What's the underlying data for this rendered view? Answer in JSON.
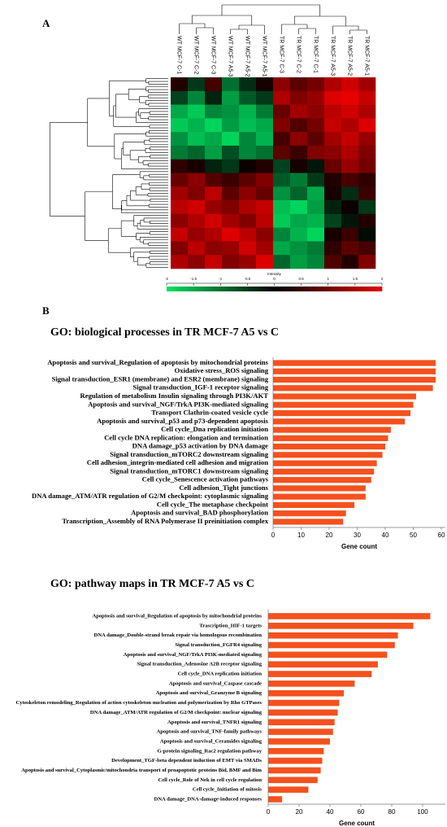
{
  "chart_data": [
    {
      "type": "heatmap",
      "panel": "A",
      "x": [
        "WT MCF-7 C-1",
        "WT MCF-7 C-2",
        "WT MCF-7 C-3",
        "WT MCF-7 A5-3",
        "WT MCF-7 A5-2",
        "WT MCF-7 A5-1",
        "TR MCF-7 C-3",
        "TR MCF-7 C-2",
        "TR MCF-7 C-1",
        "TR MCF-7 A5-3",
        "TR MCF-7 A5-2",
        "TR MCF-7 A5-1"
      ],
      "z": [
        [
          0.3,
          -0.5,
          0.6,
          -1,
          -0.4,
          0.2,
          1.2,
          0.8,
          1,
          1.5,
          1.8,
          1.4
        ],
        [
          -0.6,
          -1.2,
          -0.3,
          -1.4,
          -0.8,
          -0.5,
          1.5,
          1.1,
          1.3,
          1.9,
          2,
          1.7
        ],
        [
          -1.5,
          -1.8,
          -1.2,
          -1.3,
          -1.6,
          -1.1,
          0.9,
          1.4,
          1.2,
          1.6,
          1.8,
          1.5
        ],
        [
          -1.8,
          -1.6,
          -1.9,
          -1.4,
          -1.7,
          -1.5,
          1.1,
          0.7,
          1,
          1.7,
          1.5,
          1.9
        ],
        [
          -1.3,
          -1.7,
          -1.5,
          -1.9,
          -1.2,
          -1.6,
          0.6,
          1.2,
          0.8,
          1.4,
          1.7,
          1.3
        ],
        [
          -1.1,
          -0.9,
          -1.4,
          -0.7,
          -1.2,
          -1,
          0.8,
          0.5,
          1.1,
          1.2,
          1.5,
          1.1
        ],
        [
          0.4,
          0.2,
          -0.3,
          -0.5,
          0.1,
          0.3,
          -0.6,
          0.2,
          -0.2,
          0.9,
          1.3,
          1
        ],
        [
          0.9,
          1.2,
          0.7,
          0.5,
          0.8,
          1.1,
          -0.8,
          -1.1,
          -0.5,
          0.3,
          0.6,
          0.4
        ],
        [
          1.4,
          1.1,
          1.6,
          0.8,
          1.2,
          0.9,
          -1.3,
          -0.9,
          -1.5,
          0.2,
          -0.4,
          0.5
        ],
        [
          1.6,
          1.8,
          1.3,
          1.1,
          1.5,
          1.7,
          -1.7,
          -1.9,
          -1.4,
          -0.3,
          0.1,
          -0.5
        ],
        [
          1.2,
          1.5,
          1.8,
          1.4,
          1.1,
          1.6,
          -1.8,
          -1.5,
          -1.6,
          -0.6,
          -0.2,
          0.3
        ],
        [
          1.7,
          1.3,
          1.5,
          1.9,
          1.6,
          1.2,
          -1.2,
          -1.6,
          -1.9,
          0.2,
          0.5,
          -0.1
        ],
        [
          1.1,
          1.6,
          1.2,
          1.3,
          1.8,
          1.4,
          -1.5,
          -1.3,
          -1.1,
          0.4,
          0.8,
          0.6
        ],
        [
          1.5,
          1.2,
          1.7,
          1.1,
          1.3,
          1.9,
          -0.9,
          -1.4,
          -1.2,
          0.7,
          0.3,
          1.1
        ]
      ],
      "zlim": [
        -2,
        2
      ],
      "zticks": [
        -2,
        -1.5,
        -1,
        -0.5,
        0,
        0.5,
        1,
        1.5,
        2
      ],
      "colorbar_label": "Intensity",
      "colors": [
        "#00e060",
        "#000000",
        "#e80000"
      ]
    },
    {
      "type": "barh",
      "panel": "B",
      "title": "GO: biological processes in TR MCF-7 A5 vs C",
      "x_label": "Gene count",
      "color": "#f4511e",
      "categories": [
        "Apoptosis and survival_Regulation of apoptosis by mitochondrial proteins",
        "Oxidative stress_ROS signaling",
        "Signal transduction_ESR1 (membrane) and ESR2 (membrane) signaling",
        "Signal transduction_IGF-1 receptor signaling",
        "Regulation of metabolism Insulin signaling through PI3K/AKT",
        "Apoptosis and survival_NGF/TrkA PI3K-mediated signaling",
        "Transport Clathrin-coated vesicle cycle",
        "Apoptosis and survival_p53 and p73-dependent apoptosis",
        "Cell cycle_Dna replication initiation",
        "Cell cycle DNA replication: elongation and termination",
        "DNA damage_p53 activation by DNA damage",
        "Signal transduction_mTORC2 downstream signaling",
        "Cell adhesion_integrin-mediated cell adhesion and migration",
        "Signal transduction_mTORC1 downstream signaling",
        "Cell cycle_Senescence activation pathways",
        "Cell adhesion_Tight junctions",
        "DNA damage_ATM/ATR regulation of G2/M checkpoint: cytoplasmic signaling",
        "Cell cycle_The metaphase checkpoint",
        "Apoptosis and survival_BAD phosphorylation",
        "Transcription_Assembly of RNA Polymerase II preinitiation complex"
      ],
      "values": [
        58,
        58,
        58,
        57,
        51,
        50,
        49,
        47,
        42,
        41,
        40,
        39,
        37,
        36,
        35,
        33,
        33,
        29,
        26,
        25
      ],
      "xlim": [
        0,
        60
      ],
      "xticks": [
        0,
        10,
        20,
        30,
        40,
        50,
        60
      ]
    },
    {
      "type": "barh",
      "title": "GO: pathway maps in TR MCF-7 A5 vs C",
      "x_label": "Gene count",
      "color": "#f4511e",
      "categories": [
        "Apoptosis and survival_Regulation of apoptosis by mitochondrial proteins",
        "Trascription_HIF-1 targets",
        "DNA damage_Double-strand break repair via homologous recombination",
        "Signal transduction_FGFR4 signaling",
        "Apoptosis and survival_NGF/TrkA PI3K-mediated signaling",
        "Signal transduction_Adenosine A2B receptor signaling",
        "Cell cycle_DNA replication initiation",
        "Apoptosis and survival_Caspase cascade",
        "Apoptosis and survival_Granzyme B signaling",
        "Cytoskeleton remodeling_Regulation of action cytoskeleton nucleation and polymerization by Rho GTPases",
        "DNA damage_ATM/ATR regulation of G2/M checkpoint: nuclear signaling",
        "Apoptosis and survival_TNFR1 signaling",
        "Apoptosis and survival_TNF-family pathways",
        "Apoptosis and survival_Ceramides signaling",
        "G-protein signaling_Rac2 regulation pathway",
        "Development_TGF-beta dependent induction of EMT via SMADs",
        "Apoptosis and survival_Cytoplasmic/mitochondria transport of proapoptotic proteins Bid, BMF and Bim",
        "Cell cycle_Role of Nek in cell cycle regulation",
        "Cell cycle_Initiation of mitosis",
        "DNA damage_DNA-damage-induced responses"
      ],
      "values": [
        105,
        94,
        84,
        82,
        77,
        71,
        67,
        56,
        49,
        46,
        45,
        43,
        42,
        40,
        36,
        35,
        34,
        32,
        26,
        9
      ],
      "xlim": [
        0,
        110
      ],
      "xticks": [
        0,
        20,
        40,
        60,
        80,
        100
      ]
    }
  ]
}
